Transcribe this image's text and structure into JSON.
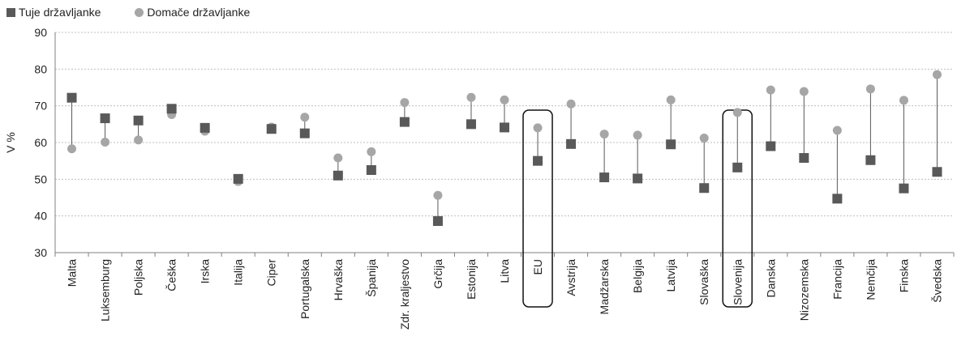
{
  "chart_data": {
    "type": "scatter",
    "ylabel": "V %",
    "ylim": [
      30,
      90
    ],
    "yticks": [
      30,
      40,
      50,
      60,
      70,
      80,
      90
    ],
    "grid": true,
    "legend_position": "top-left",
    "categories": [
      "Malta",
      "Luksemburg",
      "Poljska",
      "Češka",
      "Irska",
      "Italija",
      "Ciper",
      "Portugalska",
      "Hrvaška",
      "Španija",
      "Zdr. kraljestvo",
      "Grčija",
      "Estonija",
      "Litva",
      "EU",
      "Avstrija",
      "Madžarska",
      "Belgija",
      "Latvija",
      "Slovaška",
      "Slovenija",
      "Danska",
      "Nizozemska",
      "Francija",
      "Nemčija",
      "Finska",
      "Švedska"
    ],
    "highlighted": [
      "EU",
      "Slovenija"
    ],
    "series": [
      {
        "name": "Tuje državljanke",
        "marker": "square",
        "color": "#595959",
        "values": [
          72.2,
          66.6,
          66.0,
          69.2,
          64.0,
          50.1,
          63.7,
          62.5,
          51.0,
          52.5,
          65.6,
          38.6,
          65.0,
          64.1,
          55.0,
          59.6,
          50.5,
          50.2,
          59.5,
          47.6,
          53.2,
          59.0,
          55.8,
          44.7,
          55.2,
          47.5,
          52.0
        ]
      },
      {
        "name": "Domače državljanke",
        "marker": "circle",
        "color": "#a6a6a6",
        "values": [
          58.3,
          60.1,
          60.7,
          67.6,
          63.1,
          49.4,
          64.2,
          66.9,
          55.8,
          57.5,
          70.9,
          45.6,
          72.3,
          71.6,
          64.0,
          70.5,
          62.3,
          62.0,
          71.6,
          61.2,
          68.2,
          74.3,
          73.9,
          63.3,
          74.6,
          71.5,
          78.5
        ]
      }
    ]
  }
}
